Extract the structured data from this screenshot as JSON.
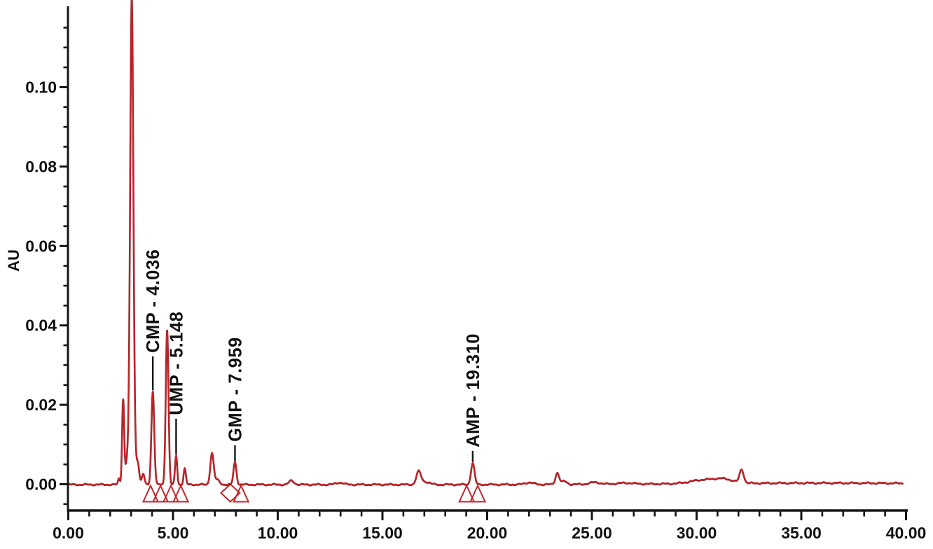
{
  "chart_data": {
    "type": "line",
    "title": "",
    "xlabel": "",
    "ylabel": "AU",
    "xlim": [
      0,
      40
    ],
    "ylim": [
      -0.0066,
      0.1203
    ],
    "grid": false,
    "legend": "none",
    "trace_color": "#c4252b",
    "trace_dark_color": "#8e1b1e",
    "axis_color": "#161616",
    "text_color": "#111111",
    "x_major_ticks": [
      0,
      5,
      10,
      15,
      20,
      25,
      30,
      35,
      40
    ],
    "x_major_tick_labels": [
      "0.00",
      "5.00",
      "10.00",
      "15.00",
      "20.00",
      "25.00",
      "30.00",
      "35.00",
      "40.00"
    ],
    "x_minor_tick_interval": 1,
    "y_major_ticks": [
      0,
      0.02,
      0.04,
      0.06,
      0.08,
      0.1
    ],
    "y_major_tick_labels": [
      "0.00",
      "0.02",
      "0.04",
      "0.06",
      "0.08",
      "0.10"
    ],
    "y_minor_tick_interval": 0.005,
    "y_minor_tick_range": [
      -0.005,
      0.115
    ],
    "labeled_peaks": [
      {
        "name": "CMP",
        "retention_time": 4.036,
        "label": "CMP - 4.036",
        "height_au": 0.0235,
        "sigma": 0.068,
        "label_line_top_au": 0.0322
      },
      {
        "name": "UMP",
        "retention_time": 5.148,
        "label": "UMP - 5.148",
        "height_au": 0.0073,
        "sigma": 0.052,
        "label_line_top_au": 0.0165
      },
      {
        "name": "GMP",
        "retention_time": 7.959,
        "label": "GMP - 7.959",
        "height_au": 0.0056,
        "sigma": 0.072,
        "label_line_top_au": 0.0098
      },
      {
        "name": "AMP",
        "retention_time": 19.31,
        "label": "AMP - 19.310",
        "height_au": 0.0054,
        "sigma": 0.085,
        "label_line_top_au": 0.0084
      }
    ],
    "unlabeled_peaks": [
      {
        "t": 2.42,
        "h": 0.0015,
        "sigma": 0.045
      },
      {
        "t": 2.62,
        "h": 0.0212,
        "sigma": 0.05
      },
      {
        "t": 2.8,
        "h": 0.0035,
        "sigma": 0.07
      },
      {
        "t": 3.03,
        "h": 0.1135,
        "sigma": 0.075
      },
      {
        "t": 3.06,
        "h": 0.0095,
        "sigma": 0.17
      },
      {
        "t": 3.33,
        "h": 0.003,
        "sigma": 0.055
      },
      {
        "t": 3.58,
        "h": 0.0026,
        "sigma": 0.06
      },
      {
        "t": 4.72,
        "h": 0.039,
        "sigma": 0.065
      },
      {
        "t": 5.56,
        "h": 0.004,
        "sigma": 0.055
      },
      {
        "t": 6.86,
        "h": 0.0078,
        "sigma": 0.08
      },
      {
        "t": 7.1,
        "h": 0.0012,
        "sigma": 0.12
      },
      {
        "t": 10.66,
        "h": 0.001,
        "sigma": 0.12
      },
      {
        "t": 12.95,
        "h": 0.0005,
        "sigma": 0.18
      },
      {
        "t": 16.73,
        "h": 0.0032,
        "sigma": 0.11
      },
      {
        "t": 17.05,
        "h": 0.0007,
        "sigma": 0.2
      },
      {
        "t": 22.0,
        "h": 0.0005,
        "sigma": 0.2
      },
      {
        "t": 23.35,
        "h": 0.0029,
        "sigma": 0.09
      },
      {
        "t": 23.68,
        "h": 0.0008,
        "sigma": 0.13
      },
      {
        "t": 25.15,
        "h": 0.0005,
        "sigma": 0.25
      },
      {
        "t": 26.6,
        "h": 0.0003,
        "sigma": 0.4
      },
      {
        "t": 30.3,
        "h": 0.0009,
        "sigma": 0.6
      },
      {
        "t": 31.3,
        "h": 0.001,
        "sigma": 0.45
      },
      {
        "t": 32.15,
        "h": 0.0033,
        "sigma": 0.1
      },
      {
        "t": 36.0,
        "h": 0.0004,
        "sigma": 6.0
      }
    ],
    "integration_markers": [
      {
        "shape": "triangle",
        "t": 3.93
      },
      {
        "shape": "triangle",
        "t": 4.4
      },
      {
        "shape": "triangle",
        "t": 4.9
      },
      {
        "shape": "triangle",
        "t": 5.37
      },
      {
        "shape": "diamond",
        "t": 7.74
      },
      {
        "shape": "triangle",
        "t": 8.25
      },
      {
        "shape": "triangle",
        "t": 19.02
      },
      {
        "shape": "triangle",
        "t": 19.55
      }
    ]
  }
}
